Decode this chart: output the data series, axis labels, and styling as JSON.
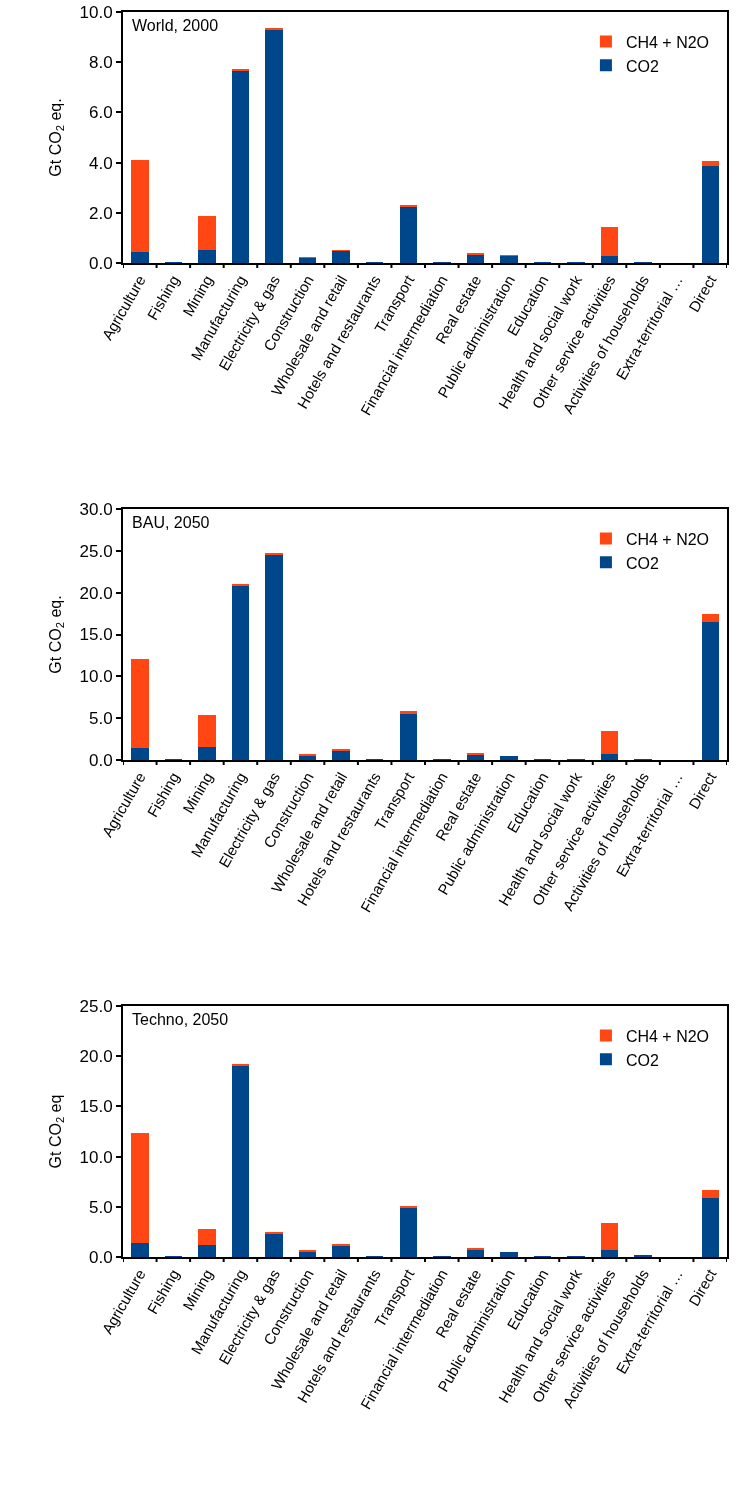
{
  "chart_data": [
    {
      "type": "bar",
      "title": "World, 2000",
      "ylabel": "Gt CO$_{2}$ eq.",
      "stacked": true,
      "legend": "top right",
      "grid": false,
      "categories": [
        "Agriculture",
        "Fishing",
        "Mining",
        "Manufacturing",
        "Electricity & gas",
        "Construction",
        "Wholesale and retail",
        "Hotels and restaurants",
        "Transport",
        "Financial intermediation",
        "Real estate",
        "Public administration",
        "Education",
        "Health and social work",
        "Other service activities",
        "Activities of households",
        "Extra-territorial …",
        "Direct"
      ],
      "ylim": [
        0,
        10
      ],
      "yticks": [
        {
          "value": 0,
          "label": "0.0"
        },
        {
          "value": 2,
          "label": "2.0"
        },
        {
          "value": 4,
          "label": "4.0"
        },
        {
          "value": 6,
          "label": "6.0"
        },
        {
          "value": 8,
          "label": "8.0"
        },
        {
          "value": 10,
          "label": "10.0"
        }
      ],
      "series": [
        {
          "name": "CO2",
          "color": "#00468b",
          "values": [
            0.45,
            0.02,
            0.52,
            7.65,
            9.3,
            0.2,
            0.48,
            0.03,
            2.25,
            0.02,
            0.35,
            0.28,
            0.02,
            0.02,
            0.28,
            0.02,
            0,
            3.88
          ]
        },
        {
          "name": "CH4 + N2O",
          "color": "#ff4613",
          "values": [
            3.65,
            0,
            1.35,
            0.08,
            0.08,
            0.02,
            0.03,
            0,
            0.07,
            0,
            0.02,
            0.01,
            0,
            0,
            1.15,
            0,
            0,
            0.2
          ]
        }
      ]
    },
    {
      "type": "bar",
      "title": "BAU, 2050",
      "ylabel": "Gt CO$_{2}$ eq.",
      "stacked": true,
      "legend": "top right",
      "grid": false,
      "categories": [
        "Agriculture",
        "Fishing",
        "Mining",
        "Manufacturing",
        "Electricity & gas",
        "Construction",
        "Wholesale and retail",
        "Hotels and restaurants",
        "Transport",
        "Financial intermediation",
        "Real estate",
        "Public administration",
        "Education",
        "Health and social work",
        "Other service activities",
        "Activities of households",
        "Extra-territorial …",
        "Direct"
      ],
      "ylim": [
        0,
        30
      ],
      "yticks": [
        {
          "value": 0,
          "label": "0.0"
        },
        {
          "value": 5,
          "label": "5.0"
        },
        {
          "value": 10,
          "label": "10.0"
        },
        {
          "value": 15,
          "label": "15.0"
        },
        {
          "value": 20,
          "label": "20.0"
        },
        {
          "value": 25,
          "label": "25.0"
        },
        {
          "value": 30,
          "label": "30.0"
        }
      ],
      "series": [
        {
          "name": "CO2",
          "color": "#00468b",
          "values": [
            1.4,
            0.1,
            1.5,
            20.8,
            24.6,
            0.5,
            1.1,
            0.1,
            5.6,
            0.1,
            0.7,
            0.5,
            0.1,
            0.1,
            0.7,
            0.1,
            0,
            16.5
          ]
        },
        {
          "name": "CH4 + N2O",
          "color": "#ff4613",
          "values": [
            10.7,
            0,
            3.9,
            0.2,
            0.2,
            0.1,
            0.1,
            0,
            0.2,
            0,
            0.1,
            0,
            0,
            0,
            2.8,
            0,
            0,
            0.9
          ]
        }
      ]
    },
    {
      "type": "bar",
      "title": "Techno, 2050",
      "ylabel": "Gt CO$_{2}$ eq",
      "stacked": true,
      "legend": "top right",
      "grid": false,
      "categories": [
        "Agriculture",
        "Fishing",
        "Mining",
        "Manufacturing",
        "Electricity & gas",
        "Construction",
        "Wholesale and retail",
        "Hotels and restaurants",
        "Transport",
        "Financial intermediation",
        "Real estate",
        "Public administration",
        "Education",
        "Health and social work",
        "Other service activities",
        "Activities of households",
        "Extra-territorial …",
        "Direct"
      ],
      "ylim": [
        0,
        25
      ],
      "yticks": [
        {
          "value": 0,
          "label": "0.0"
        },
        {
          "value": 5,
          "label": "5.0"
        },
        {
          "value": 10,
          "label": "10.0"
        },
        {
          "value": 15,
          "label": "15.0"
        },
        {
          "value": 20,
          "label": "20.0"
        },
        {
          "value": 25,
          "label": "25.0"
        }
      ],
      "series": [
        {
          "name": "CO2",
          "color": "#00468b",
          "values": [
            1.4,
            0.1,
            1.2,
            19.0,
            2.3,
            0.5,
            1.1,
            0.1,
            4.9,
            0.1,
            0.7,
            0.5,
            0.1,
            0.1,
            0.7,
            0.2,
            0,
            5.9
          ]
        },
        {
          "name": "CH4 + N2O",
          "color": "#ff4613",
          "values": [
            11.0,
            0,
            1.6,
            0.2,
            0.2,
            0.1,
            0.1,
            0,
            0.2,
            0,
            0.1,
            0,
            0,
            0,
            2.7,
            0,
            0,
            0.8
          ]
        }
      ]
    }
  ]
}
